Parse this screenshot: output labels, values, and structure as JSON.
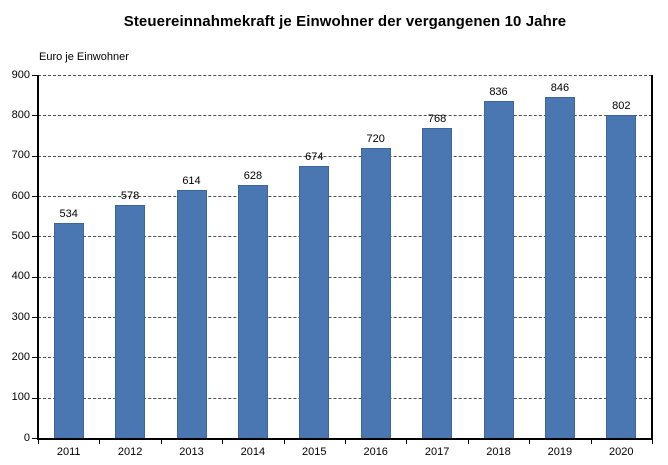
{
  "chart_data": {
    "type": "bar",
    "title": "Steuereinnahmekraft je Einwohner der vergangenen 10 Jahre",
    "ylabel": "Euro je Einwohner",
    "xlabel": "",
    "categories": [
      "2011",
      "2012",
      "2013",
      "2014",
      "2015",
      "2016",
      "2017",
      "2018",
      "2019",
      "2020"
    ],
    "values": [
      534,
      578,
      614,
      628,
      674,
      720,
      768,
      836,
      846,
      802
    ],
    "ylim": [
      0,
      900
    ],
    "ytick_step": 100,
    "grid": "horizontal-dashed",
    "legend": "none",
    "colors": {
      "bar_fill": "#4a76b2",
      "bar_border": "#3e649c",
      "gridline": "#4d4d4d",
      "axis": "#000000",
      "text": "#000000",
      "background": "#ffffff"
    }
  }
}
